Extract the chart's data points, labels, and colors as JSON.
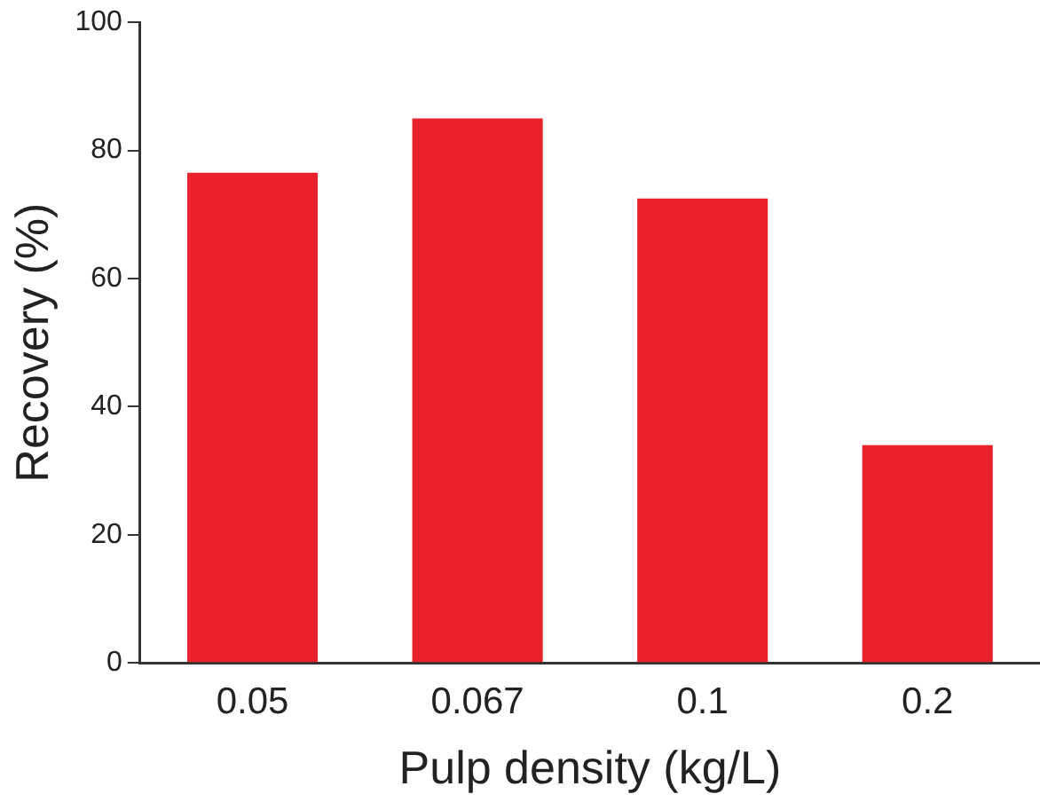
{
  "chart_data": {
    "type": "bar",
    "xlabel": "Pulp density (kg/L)",
    "ylabel": "Recovery (%)",
    "categories": [
      "0.05",
      "0.067",
      "0.1",
      "0.2"
    ],
    "values": [
      76.5,
      85,
      72.5,
      34
    ],
    "color": "#e8212b",
    "ylim": [
      0,
      100
    ],
    "yticks": [
      0,
      20,
      40,
      60,
      80,
      100
    ],
    "grid": false,
    "legend": false
  }
}
